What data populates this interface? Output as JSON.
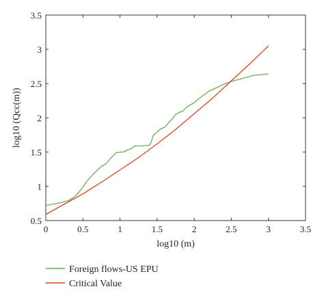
{
  "chart_data": {
    "type": "line",
    "xlabel": "log10 (m)",
    "ylabel": "log10 (Qcc(m))",
    "xlim": [
      0,
      3.5
    ],
    "ylim": [
      0.5,
      3.5
    ],
    "xticks": [
      0,
      0.5,
      1,
      1.5,
      2,
      2.5,
      3,
      3.5
    ],
    "yticks": [
      0.5,
      1,
      1.5,
      2,
      2.5,
      3,
      3.5
    ],
    "xtick_labels": [
      "0",
      "0.5",
      "1",
      "1.5",
      "2",
      "2.5",
      "3",
      "3.5"
    ],
    "ytick_labels": [
      "0.5",
      "1",
      "1.5",
      "2",
      "2.5",
      "3",
      "3.5"
    ],
    "grid": false,
    "box": true,
    "legend_position": "below plot",
    "series": [
      {
        "name": "Foreign flows-US EPU",
        "color": "#6ab04c",
        "x": [
          0,
          0.1,
          0.2,
          0.3,
          0.35,
          0.4,
          0.45,
          0.5,
          0.55,
          0.6,
          0.65,
          0.7,
          0.75,
          0.8,
          0.85,
          0.9,
          0.95,
          1.0,
          1.05,
          1.1,
          1.15,
          1.2,
          1.3,
          1.4,
          1.42,
          1.45,
          1.5,
          1.55,
          1.6,
          1.65,
          1.7,
          1.75,
          1.8,
          1.85,
          1.9,
          2.0,
          2.05,
          2.1,
          2.15,
          2.2,
          2.3,
          2.4,
          2.5,
          2.6,
          2.7,
          2.8,
          2.9,
          3.0
        ],
        "y": [
          0.72,
          0.74,
          0.76,
          0.79,
          0.82,
          0.86,
          0.92,
          0.99,
          1.07,
          1.13,
          1.19,
          1.24,
          1.29,
          1.32,
          1.38,
          1.44,
          1.49,
          1.5,
          1.5,
          1.53,
          1.55,
          1.59,
          1.59,
          1.6,
          1.65,
          1.75,
          1.79,
          1.84,
          1.86,
          1.92,
          1.98,
          2.05,
          2.08,
          2.1,
          2.16,
          2.22,
          2.27,
          2.31,
          2.35,
          2.39,
          2.44,
          2.49,
          2.53,
          2.56,
          2.59,
          2.62,
          2.63,
          2.64
        ]
      },
      {
        "name": "Critical Value",
        "color": "#d9441f",
        "x": [
          0,
          0.25,
          0.5,
          0.75,
          1.0,
          1.25,
          1.5,
          1.75,
          2.0,
          2.25,
          2.5,
          2.75,
          3.0
        ],
        "y": [
          0.59,
          0.74,
          0.89,
          1.06,
          1.24,
          1.42,
          1.62,
          1.83,
          2.06,
          2.29,
          2.54,
          2.79,
          3.05
        ]
      }
    ]
  }
}
